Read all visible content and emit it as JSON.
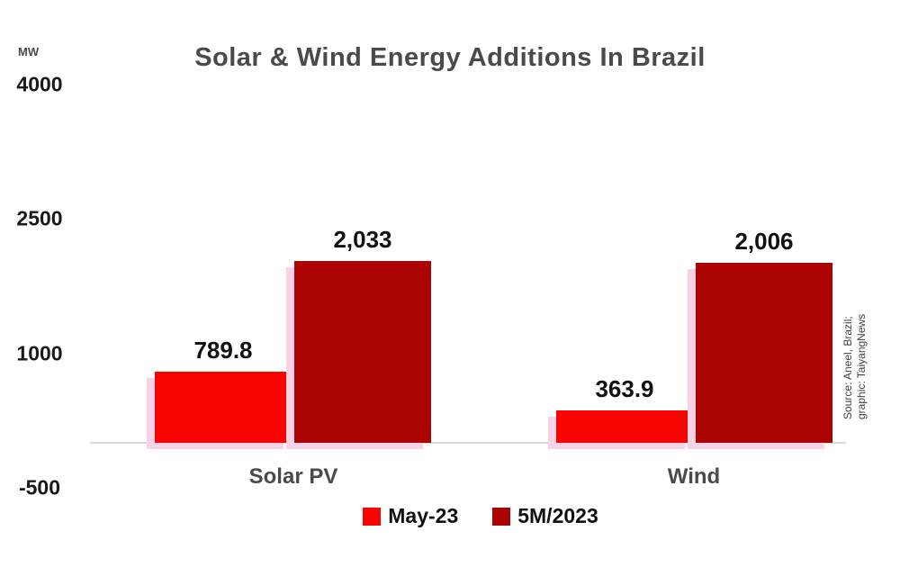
{
  "title": "Solar & Wind Energy Additions In Brazil",
  "unit_label": "MW",
  "legend": [
    {
      "label": "May-23",
      "color": "#f90400"
    },
    {
      "label": "5M/2023",
      "color": "#ac0402"
    }
  ],
  "source": {
    "line1": "Source: Aneel, Brazil;",
    "line2": "graphic: TaiyangNews"
  },
  "chart_data": {
    "type": "bar",
    "categories": [
      "Solar PV",
      "Wind"
    ],
    "series": [
      {
        "name": "May-23",
        "color": "#f90400",
        "values": [
          789.8,
          363.9
        ],
        "value_labels": [
          "789.8",
          "363.9"
        ]
      },
      {
        "name": "5M/2023",
        "color": "#ac0402",
        "values": [
          2033,
          2006
        ],
        "value_labels": [
          "2,033",
          "2,006"
        ]
      }
    ],
    "title": "Solar & Wind Energy Additions In Brazil",
    "xlabel": "",
    "ylabel": "MW",
    "ylim": [
      -500,
      4000
    ],
    "y_ticks": [
      {
        "label": "4000",
        "value": 4000
      },
      {
        "label": "2500",
        "value": 2500
      },
      {
        "label": "1000",
        "value": 1000
      },
      {
        "label": "-500",
        "value": -500
      }
    ],
    "grid": false,
    "legend_position": "bottom"
  }
}
